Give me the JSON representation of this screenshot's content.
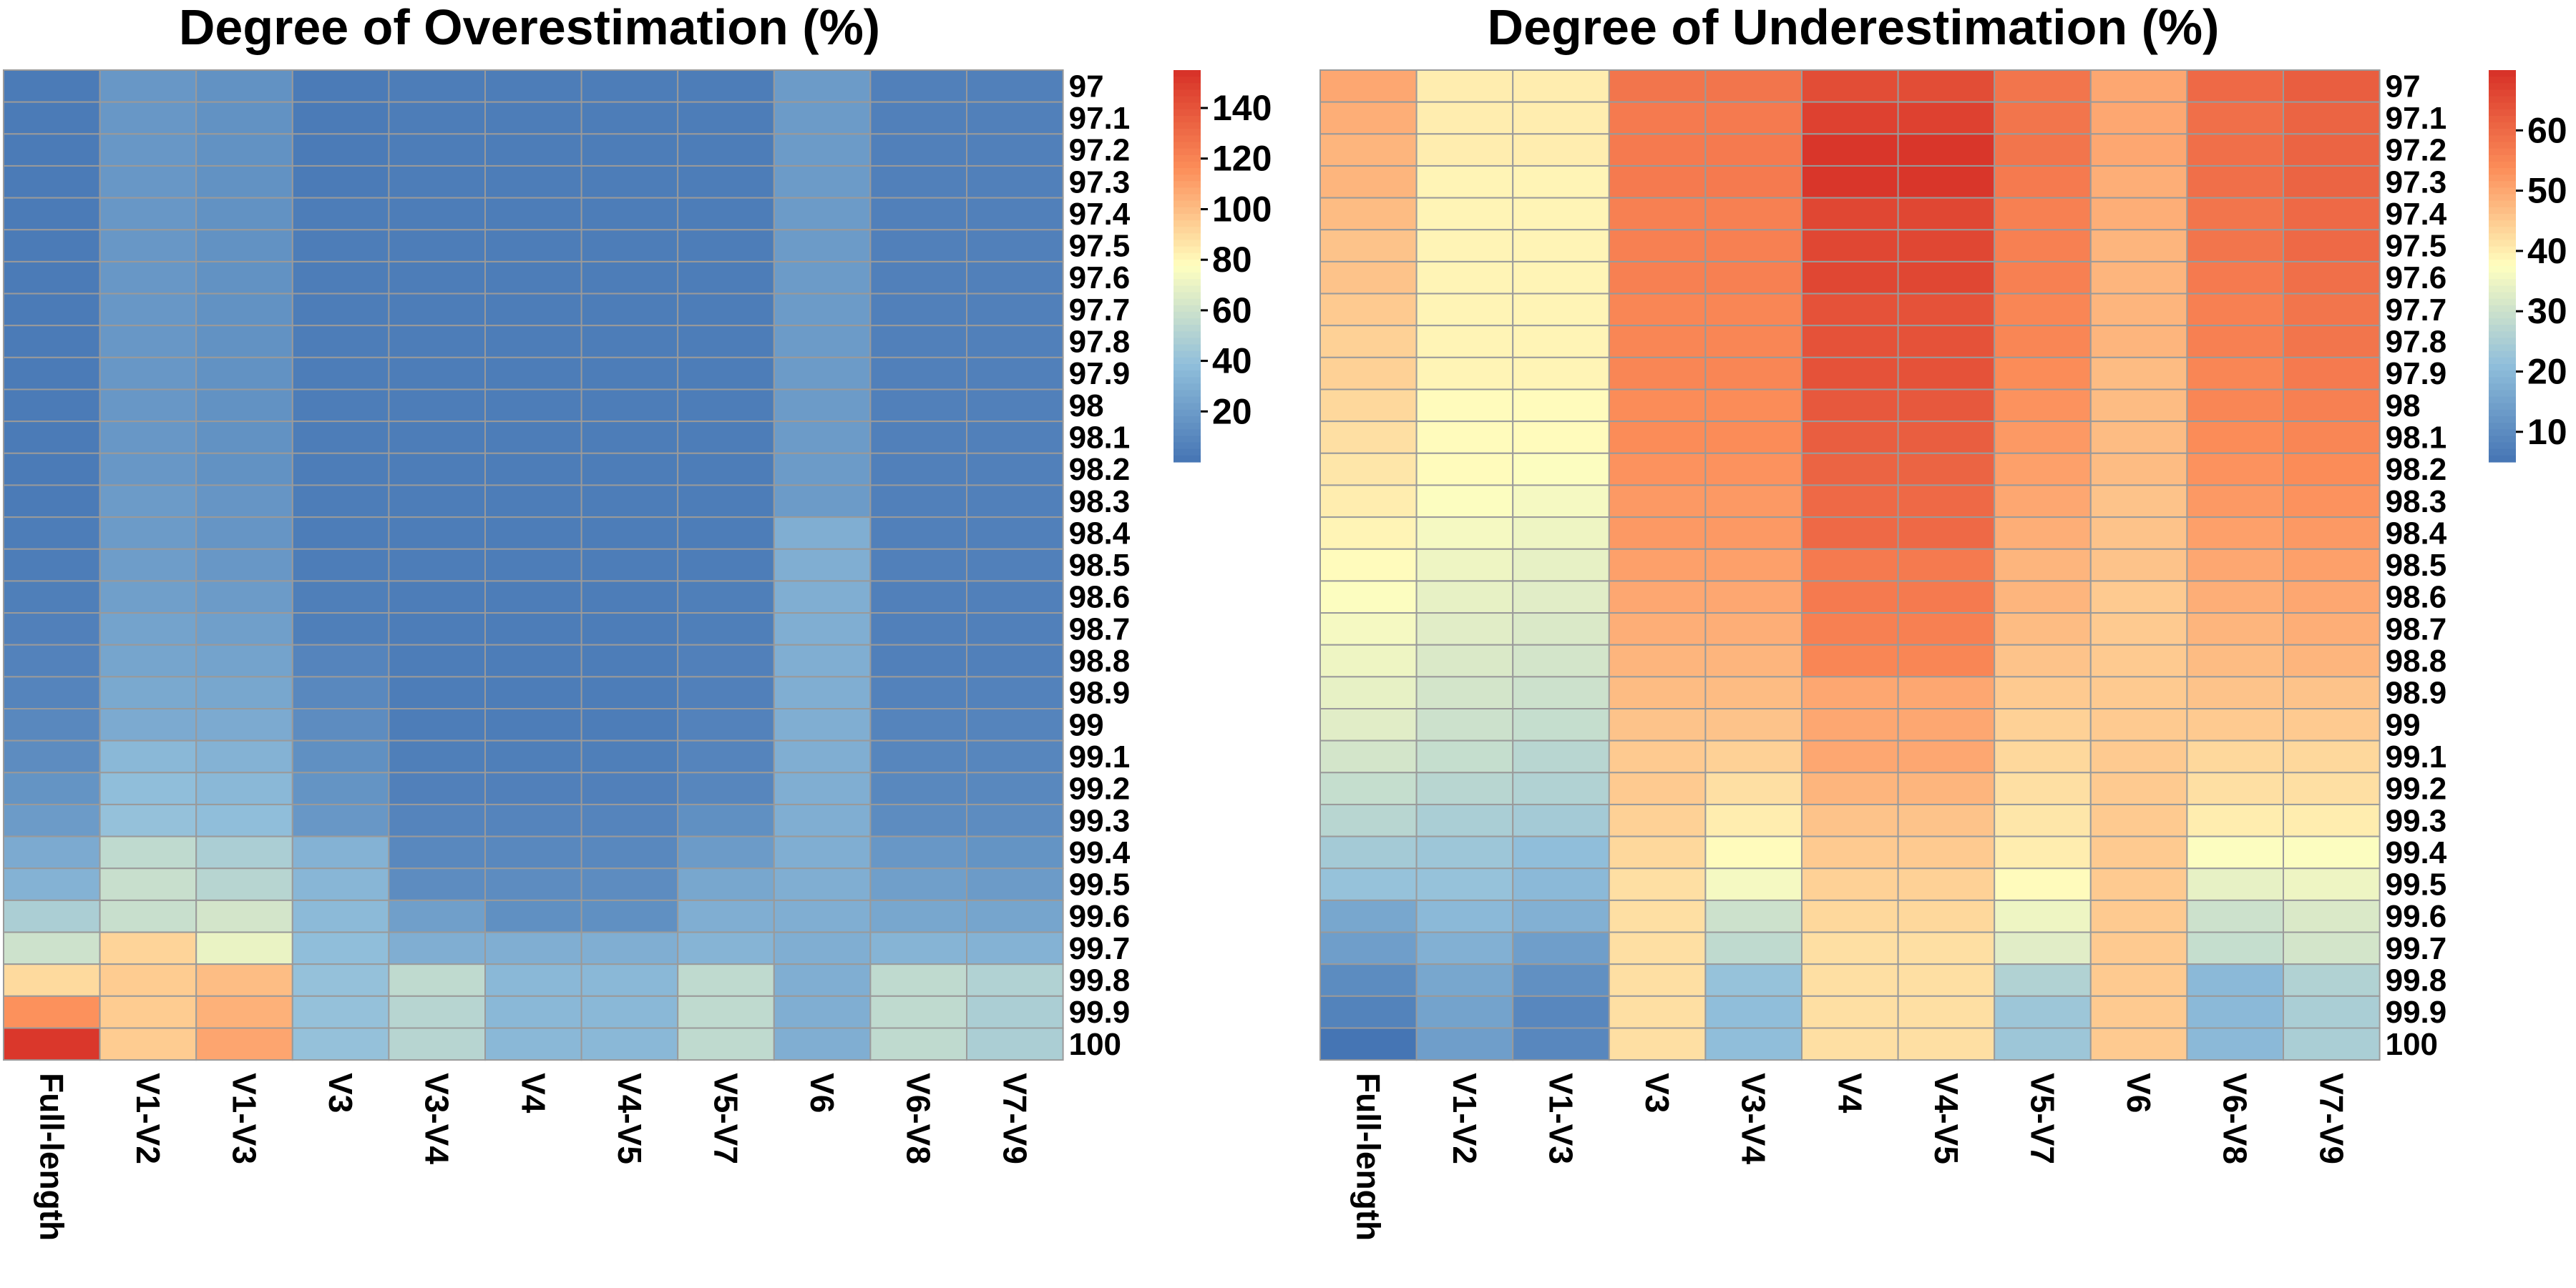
{
  "chart_data": [
    {
      "type": "heatmap",
      "title": "Degree of Overestimation (%)",
      "columns": [
        "Full-length",
        "V1-V2",
        "V1-V3",
        "V3",
        "V3-V4",
        "V4",
        "V4-V5",
        "V5-V7",
        "V6",
        "V6-V8",
        "V7-V9"
      ],
      "rows": [
        "97",
        "97.1",
        "97.2",
        "97.3",
        "97.4",
        "97.5",
        "97.6",
        "97.7",
        "97.8",
        "97.9",
        "98",
        "98.1",
        "98.2",
        "98.3",
        "98.4",
        "98.5",
        "98.6",
        "98.7",
        "98.8",
        "98.9",
        "99",
        "99.1",
        "99.2",
        "99.3",
        "99.4",
        "99.5",
        "99.6",
        "99.7",
        "99.8",
        "99.9",
        "100"
      ],
      "values": [
        [
          3,
          18,
          15,
          3,
          4,
          4,
          4,
          4,
          20,
          6,
          6
        ],
        [
          3,
          18,
          15,
          3,
          4,
          4,
          4,
          4,
          20,
          6,
          6
        ],
        [
          3,
          18,
          15,
          3,
          4,
          4,
          4,
          4,
          20,
          6,
          6
        ],
        [
          3,
          18,
          15,
          3,
          4,
          4,
          4,
          4,
          20,
          6,
          6
        ],
        [
          3,
          18,
          15,
          4,
          4,
          4,
          4,
          4,
          20,
          6,
          6
        ],
        [
          3,
          18,
          15,
          4,
          4,
          4,
          4,
          4,
          20,
          6,
          6
        ],
        [
          3,
          18,
          15,
          4,
          4,
          4,
          4,
          4,
          20,
          6,
          6
        ],
        [
          3,
          18,
          15,
          4,
          4,
          4,
          4,
          4,
          20,
          6,
          6
        ],
        [
          3,
          18,
          15,
          4,
          4,
          4,
          4,
          4,
          20,
          6,
          6
        ],
        [
          3,
          18,
          15,
          4,
          4,
          4,
          4,
          4,
          20,
          6,
          6
        ],
        [
          3,
          18,
          15,
          4,
          4,
          4,
          4,
          4,
          20,
          6,
          6
        ],
        [
          3,
          18,
          15,
          4,
          4,
          4,
          4,
          4,
          20,
          6,
          6
        ],
        [
          3,
          18,
          15,
          4,
          4,
          4,
          4,
          4,
          20,
          6,
          6
        ],
        [
          3,
          20,
          17,
          4,
          4,
          4,
          4,
          4,
          20,
          6,
          6
        ],
        [
          4,
          20,
          17,
          4,
          4,
          4,
          4,
          4,
          30,
          6,
          6
        ],
        [
          4,
          21,
          18,
          4,
          4,
          4,
          4,
          4,
          30,
          6,
          6
        ],
        [
          5,
          22,
          20,
          5,
          4,
          4,
          4,
          5,
          30,
          6,
          6
        ],
        [
          6,
          24,
          22,
          5,
          4,
          4,
          4,
          5,
          30,
          6,
          6
        ],
        [
          7,
          25,
          24,
          8,
          4,
          4,
          4,
          6,
          30,
          6,
          6
        ],
        [
          8,
          27,
          26,
          10,
          4,
          4,
          4,
          6,
          30,
          7,
          7
        ],
        [
          10,
          28,
          28,
          12,
          4,
          4,
          4,
          7,
          30,
          8,
          8
        ],
        [
          12,
          35,
          32,
          14,
          5,
          5,
          5,
          8,
          30,
          9,
          9
        ],
        [
          16,
          38,
          35,
          16,
          6,
          6,
          6,
          9,
          30,
          10,
          10
        ],
        [
          20,
          40,
          38,
          18,
          8,
          8,
          8,
          14,
          30,
          12,
          12
        ],
        [
          28,
          55,
          48,
          32,
          10,
          10,
          10,
          20,
          30,
          18,
          16
        ],
        [
          32,
          58,
          52,
          34,
          12,
          12,
          12,
          26,
          30,
          22,
          20
        ],
        [
          48,
          58,
          62,
          36,
          22,
          14,
          14,
          30,
          30,
          26,
          25
        ],
        [
          60,
          92,
          70,
          38,
          30,
          30,
          30,
          33,
          30,
          33,
          32
        ],
        [
          90,
          95,
          100,
          40,
          55,
          35,
          35,
          55,
          30,
          55,
          50
        ],
        [
          115,
          95,
          104,
          40,
          52,
          35,
          35,
          55,
          30,
          55,
          48
        ],
        [
          152,
          95,
          108,
          40,
          52,
          35,
          35,
          55,
          30,
          55,
          48
        ]
      ],
      "legend": {
        "ticks": [
          20,
          40,
          60,
          80,
          100,
          120,
          140
        ],
        "min": 0,
        "max": 155
      },
      "colors": {
        "low": "#4575b4",
        "mid": "#ffffbf",
        "high": "#d73027"
      }
    },
    {
      "type": "heatmap",
      "title": "Degree of Underestimation (%)",
      "columns": [
        "Full-length",
        "V1-V2",
        "V1-V3",
        "V3",
        "V3-V4",
        "V4",
        "V4-V5",
        "V5-V7",
        "V6",
        "V6-V8",
        "V7-V9"
      ],
      "rows": [
        "97",
        "97.1",
        "97.2",
        "97.3",
        "97.4",
        "97.5",
        "97.6",
        "97.7",
        "97.8",
        "97.9",
        "98",
        "98.1",
        "98.2",
        "98.3",
        "98.4",
        "98.5",
        "98.6",
        "98.7",
        "98.8",
        "98.9",
        "99",
        "99.1",
        "99.2",
        "99.3",
        "99.4",
        "99.5",
        "99.6",
        "99.7",
        "99.8",
        "99.9",
        "100"
      ],
      "values": [
        [
          50,
          40,
          40,
          58,
          58,
          65,
          65,
          58,
          50,
          60,
          62
        ],
        [
          49,
          40,
          40,
          57,
          57,
          67,
          67,
          58,
          50,
          59,
          61
        ],
        [
          48,
          40,
          40,
          57,
          57,
          69,
          69,
          58,
          50,
          59,
          61
        ],
        [
          48,
          39,
          39,
          57,
          57,
          69,
          69,
          57,
          49,
          59,
          61
        ],
        [
          47,
          39,
          39,
          56,
          56,
          66,
          66,
          56,
          49,
          58,
          60
        ],
        [
          46,
          39,
          39,
          56,
          56,
          66,
          66,
          56,
          48,
          58,
          60
        ],
        [
          46,
          39,
          39,
          56,
          56,
          66,
          66,
          56,
          48,
          57,
          59
        ],
        [
          45,
          39,
          39,
          55,
          55,
          64,
          64,
          55,
          48,
          56,
          58
        ],
        [
          44,
          39,
          39,
          55,
          55,
          64,
          64,
          55,
          48,
          56,
          58
        ],
        [
          44,
          39,
          39,
          55,
          55,
          64,
          64,
          54,
          47,
          55,
          57
        ],
        [
          43,
          38,
          38,
          54,
          54,
          63,
          63,
          53,
          47,
          55,
          56
        ],
        [
          42,
          38,
          38,
          54,
          54,
          62,
          62,
          52,
          47,
          54,
          55
        ],
        [
          41,
          38,
          37,
          53,
          53,
          61,
          61,
          51,
          47,
          53,
          54
        ],
        [
          40,
          37,
          36,
          52,
          52,
          60,
          60,
          50,
          46,
          52,
          53
        ],
        [
          39,
          36,
          35,
          52,
          52,
          60,
          60,
          49,
          46,
          51,
          52
        ],
        [
          38,
          35,
          34,
          51,
          51,
          57,
          57,
          48,
          46,
          50,
          51
        ],
        [
          37,
          34,
          33,
          50,
          50,
          57,
          57,
          48,
          45,
          49,
          50
        ],
        [
          36,
          33,
          32,
          49,
          49,
          56,
          56,
          47,
          45,
          48,
          49
        ],
        [
          35,
          32,
          31,
          48,
          48,
          55,
          55,
          46,
          45,
          47,
          48
        ],
        [
          34,
          31,
          30,
          47,
          47,
          50,
          50,
          45,
          45,
          46,
          46
        ],
        [
          33,
          30,
          29,
          46,
          46,
          50,
          50,
          44,
          45,
          45,
          45
        ],
        [
          31,
          29,
          27,
          45,
          44,
          50,
          50,
          43,
          45,
          43,
          43
        ],
        [
          29,
          27,
          26,
          45,
          42,
          48,
          48,
          42,
          45,
          42,
          42
        ],
        [
          27,
          25,
          24,
          44,
          40,
          46,
          46,
          41,
          45,
          40,
          40
        ],
        [
          24,
          23,
          21,
          43,
          38,
          45,
          45,
          40,
          45,
          37,
          37
        ],
        [
          22,
          22,
          20,
          42,
          36,
          44,
          44,
          38,
          45,
          34,
          35
        ],
        [
          16,
          20,
          18,
          42,
          30,
          43,
          43,
          35,
          45,
          30,
          32
        ],
        [
          14,
          18,
          14,
          42,
          28,
          42,
          42,
          33,
          45,
          29,
          31
        ],
        [
          10,
          16,
          11,
          42,
          22,
          42,
          42,
          26,
          45,
          20,
          26
        ],
        [
          8,
          15,
          9,
          42,
          21,
          42,
          42,
          23,
          45,
          20,
          25
        ],
        [
          5,
          14,
          9,
          42,
          21,
          42,
          42,
          23,
          45,
          20,
          25
        ]
      ],
      "legend": {
        "ticks": [
          10,
          20,
          30,
          40,
          50,
          60
        ],
        "min": 5,
        "max": 70
      },
      "colors": {
        "low": "#4575b4",
        "mid": "#ffffbf",
        "high": "#d73027"
      }
    }
  ]
}
